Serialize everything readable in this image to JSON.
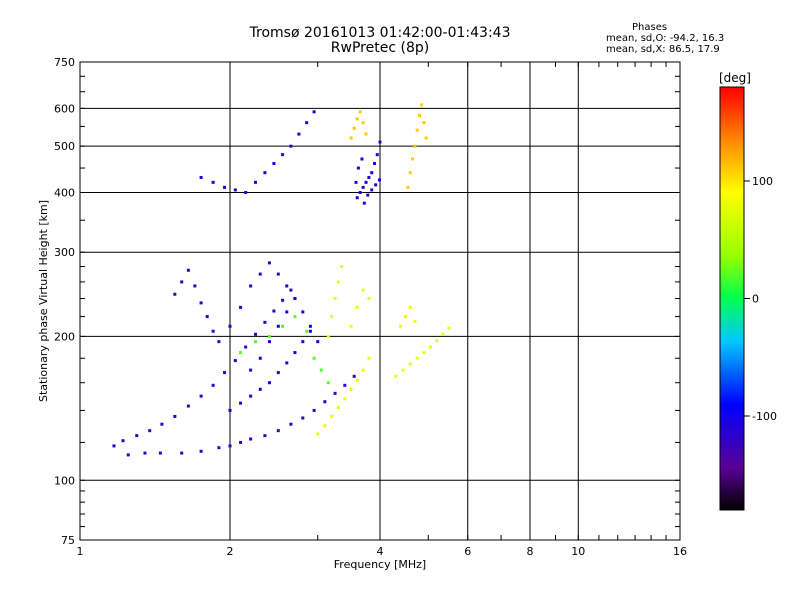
{
  "header": {
    "title_line1": "Tromsø 20161013 01:42:00-01:43:43",
    "title_line2": "RwPretec (8p)"
  },
  "phase_box": {
    "heading": "Phases",
    "line1": "mean, sd,O: -94.2, 16.3",
    "line2": "mean, sd,X:  86.5, 17.9"
  },
  "chart_data": {
    "type": "scatter",
    "xlabel": "Frequency [MHz]",
    "ylabel": "Stationary phase Virtual Height [km]",
    "xscale": "log",
    "yscale": "log",
    "xlim": [
      1,
      16
    ],
    "ylim": [
      75,
      750
    ],
    "x_ticks": [
      1,
      2,
      4,
      6,
      8,
      10,
      16
    ],
    "y_ticks": [
      75,
      100,
      200,
      300,
      400,
      500,
      600,
      750
    ],
    "grid": true,
    "colorbar": {
      "label": "[deg]",
      "range": [
        -180,
        180
      ],
      "ticks": [
        100,
        0,
        -100
      ]
    },
    "series": [
      {
        "color_deg": -115,
        "points": [
          [
            1.17,
            118
          ],
          [
            1.22,
            121
          ],
          [
            1.3,
            124
          ],
          [
            1.38,
            127
          ],
          [
            1.46,
            131
          ],
          [
            1.55,
            136
          ],
          [
            1.65,
            143
          ],
          [
            1.75,
            150
          ],
          [
            1.85,
            158
          ],
          [
            1.95,
            168
          ],
          [
            2.05,
            178
          ],
          [
            2.15,
            190
          ],
          [
            2.25,
            202
          ],
          [
            2.35,
            214
          ],
          [
            2.45,
            226
          ],
          [
            2.55,
            238
          ],
          [
            2.65,
            250
          ],
          [
            1.55,
            245
          ],
          [
            1.6,
            260
          ],
          [
            1.65,
            275
          ],
          [
            1.7,
            255
          ],
          [
            1.75,
            235
          ],
          [
            1.8,
            220
          ],
          [
            1.85,
            205
          ],
          [
            1.9,
            195
          ],
          [
            2.0,
            210
          ],
          [
            2.1,
            230
          ],
          [
            2.2,
            255
          ],
          [
            2.3,
            270
          ],
          [
            2.4,
            285
          ],
          [
            2.5,
            270
          ],
          [
            2.6,
            255
          ],
          [
            2.7,
            240
          ]
        ]
      },
      {
        "color_deg": -120,
        "points": [
          [
            1.25,
            113
          ],
          [
            1.35,
            114
          ],
          [
            1.45,
            114
          ],
          [
            1.6,
            114
          ],
          [
            1.75,
            115
          ],
          [
            1.9,
            117
          ],
          [
            2.0,
            118
          ],
          [
            2.1,
            120
          ],
          [
            2.2,
            122
          ],
          [
            2.35,
            124
          ],
          [
            2.5,
            127
          ],
          [
            2.65,
            131
          ],
          [
            2.8,
            135
          ],
          [
            2.95,
            140
          ],
          [
            3.1,
            146
          ],
          [
            3.25,
            152
          ],
          [
            3.4,
            158
          ],
          [
            3.55,
            165
          ]
        ]
      },
      {
        "color_deg": -100,
        "points": [
          [
            2.0,
            140
          ],
          [
            2.1,
            145
          ],
          [
            2.2,
            150
          ],
          [
            2.3,
            155
          ],
          [
            2.4,
            160
          ],
          [
            2.5,
            168
          ],
          [
            2.6,
            176
          ],
          [
            2.7,
            185
          ],
          [
            2.8,
            195
          ],
          [
            2.9,
            205
          ],
          [
            2.2,
            170
          ],
          [
            2.3,
            180
          ],
          [
            2.4,
            195
          ],
          [
            2.5,
            210
          ],
          [
            2.6,
            225
          ],
          [
            2.7,
            240
          ],
          [
            2.8,
            225
          ],
          [
            2.9,
            210
          ],
          [
            3.0,
            195
          ]
        ]
      },
      {
        "color_deg": -105,
        "points": [
          [
            1.75,
            430
          ],
          [
            1.85,
            420
          ],
          [
            1.95,
            410
          ],
          [
            2.05,
            405
          ],
          [
            2.15,
            400
          ],
          [
            2.25,
            420
          ],
          [
            2.35,
            440
          ],
          [
            2.45,
            460
          ],
          [
            2.55,
            480
          ],
          [
            2.65,
            500
          ],
          [
            2.75,
            530
          ],
          [
            2.85,
            560
          ],
          [
            2.95,
            590
          ]
        ]
      },
      {
        "color_deg": -110,
        "points": [
          [
            3.6,
            390
          ],
          [
            3.65,
            400
          ],
          [
            3.7,
            410
          ],
          [
            3.75,
            420
          ],
          [
            3.8,
            430
          ],
          [
            3.85,
            440
          ],
          [
            3.9,
            460
          ],
          [
            3.95,
            480
          ],
          [
            4.0,
            510
          ],
          [
            3.58,
            420
          ],
          [
            3.62,
            450
          ],
          [
            3.68,
            470
          ],
          [
            3.72,
            380
          ],
          [
            3.78,
            395
          ],
          [
            3.85,
            405
          ],
          [
            3.92,
            415
          ],
          [
            3.99,
            425
          ]
        ]
      },
      {
        "color_deg": 80,
        "points": [
          [
            3.0,
            125
          ],
          [
            3.1,
            130
          ],
          [
            3.2,
            136
          ],
          [
            3.3,
            142
          ],
          [
            3.4,
            148
          ],
          [
            3.5,
            155
          ],
          [
            3.6,
            162
          ],
          [
            3.7,
            170
          ],
          [
            3.8,
            180
          ],
          [
            3.15,
            200
          ],
          [
            3.2,
            220
          ],
          [
            3.25,
            240
          ],
          [
            3.3,
            260
          ],
          [
            3.35,
            280
          ],
          [
            3.5,
            210
          ],
          [
            3.6,
            230
          ],
          [
            3.7,
            250
          ],
          [
            3.8,
            240
          ],
          [
            4.3,
            165
          ],
          [
            4.45,
            170
          ],
          [
            4.6,
            175
          ],
          [
            4.75,
            180
          ],
          [
            4.9,
            185
          ],
          [
            5.05,
            190
          ],
          [
            5.2,
            196
          ],
          [
            5.35,
            202
          ],
          [
            5.5,
            208
          ],
          [
            4.4,
            210
          ],
          [
            4.5,
            220
          ],
          [
            4.6,
            230
          ],
          [
            4.7,
            215
          ]
        ]
      },
      {
        "color_deg": 110,
        "points": [
          [
            3.5,
            520
          ],
          [
            3.55,
            545
          ],
          [
            3.6,
            570
          ],
          [
            3.65,
            590
          ],
          [
            3.7,
            560
          ],
          [
            3.75,
            530
          ],
          [
            4.55,
            410
          ],
          [
            4.6,
            440
          ],
          [
            4.65,
            470
          ],
          [
            4.7,
            500
          ],
          [
            4.75,
            540
          ],
          [
            4.8,
            580
          ],
          [
            4.85,
            610
          ],
          [
            4.9,
            560
          ],
          [
            4.95,
            520
          ]
        ]
      },
      {
        "color_deg": 20,
        "points": [
          [
            2.1,
            185
          ],
          [
            2.25,
            195
          ],
          [
            2.4,
            200
          ],
          [
            2.55,
            210
          ],
          [
            2.7,
            220
          ],
          [
            2.85,
            205
          ],
          [
            2.95,
            180
          ],
          [
            3.05,
            170
          ],
          [
            3.15,
            160
          ]
        ]
      }
    ]
  }
}
